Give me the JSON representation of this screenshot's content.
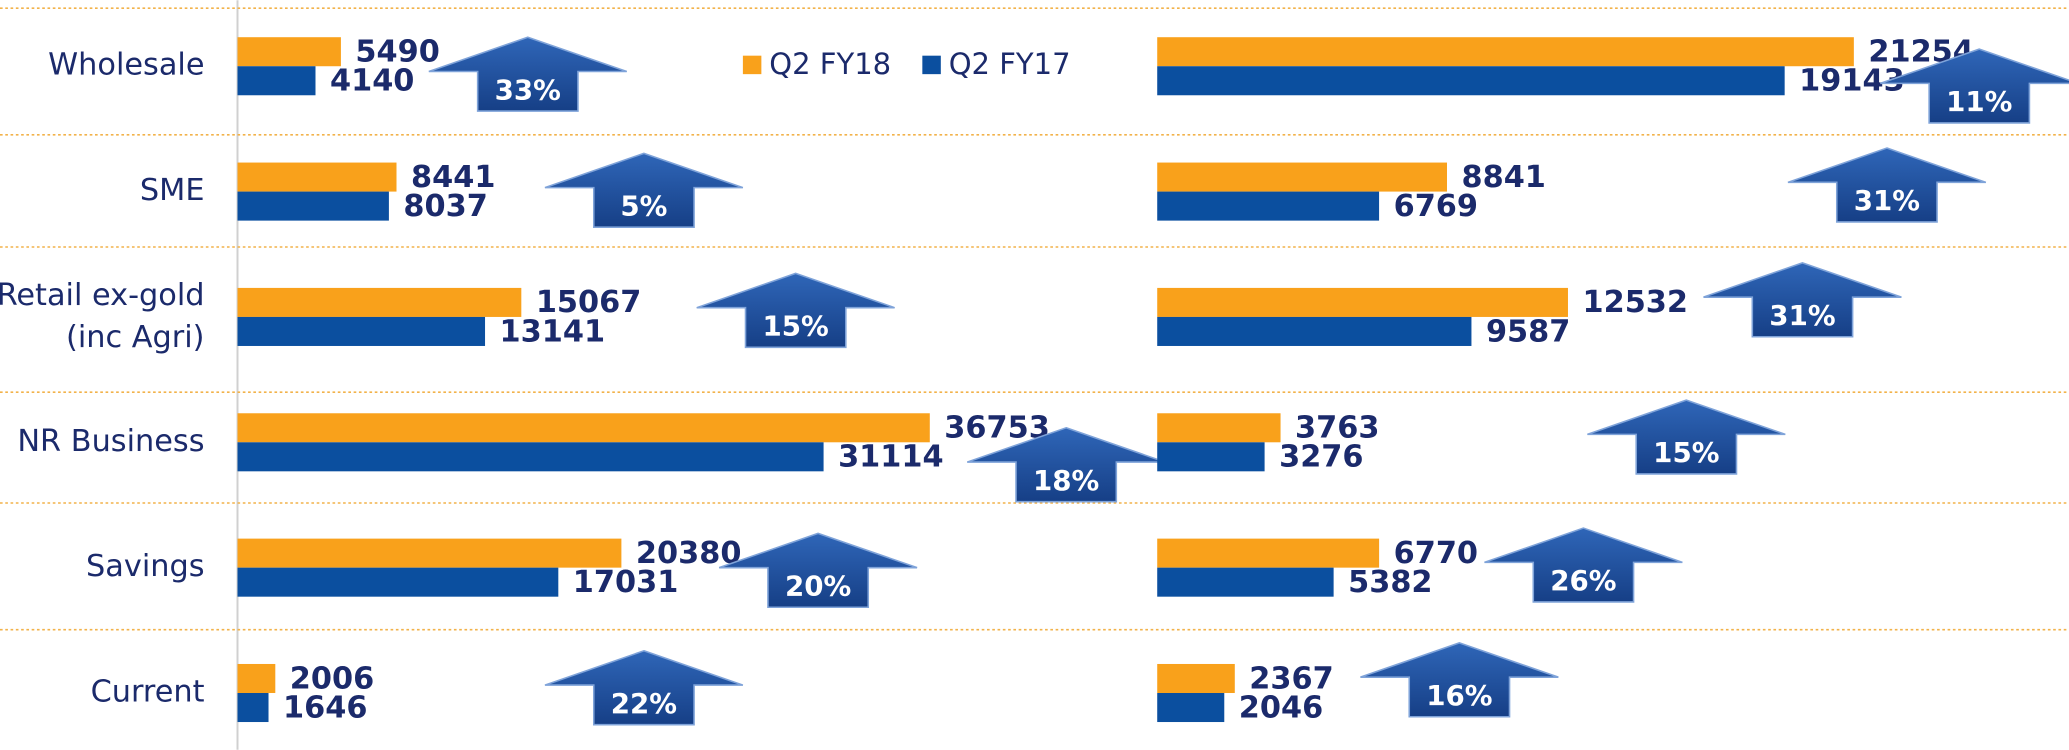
{
  "chart_data": [
    {
      "type": "bar",
      "orientation": "horizontal",
      "categories": [
        "Wholesale",
        "SME",
        "Retail ex-gold (inc Agri)",
        "NR Business",
        "Savings",
        "Current"
      ],
      "series": [
        {
          "name": "Q2 FY18",
          "color": "#f9a11b",
          "values": [
            5490,
            8441,
            15067,
            36753,
            20380,
            2006
          ]
        },
        {
          "name": "Q2 FY17",
          "color": "#0b4f9f",
          "values": [
            4140,
            8037,
            13141,
            31114,
            17031,
            1646
          ]
        }
      ],
      "growth": [
        33,
        5,
        15,
        18,
        20,
        22
      ],
      "growth_labels": [
        "33%",
        "5%",
        "15%",
        "18%",
        "20%",
        "22%"
      ],
      "xlim": [
        0,
        40000
      ]
    },
    {
      "type": "bar",
      "orientation": "horizontal",
      "series": [
        {
          "color": "#f9a11b",
          "values": [
            21254,
            8841,
            12532,
            3763,
            6770,
            2367
          ]
        },
        {
          "color": "#0b4f9f",
          "values": [
            19143,
            6769,
            9587,
            3276,
            5382,
            2046
          ]
        }
      ],
      "growth": [
        11,
        31,
        31,
        15,
        26,
        16
      ],
      "growth_labels": [
        "11%",
        "31%",
        "31%",
        "15%",
        "26%",
        "16%"
      ],
      "xlim": [
        0,
        25000
      ]
    }
  ]
}
